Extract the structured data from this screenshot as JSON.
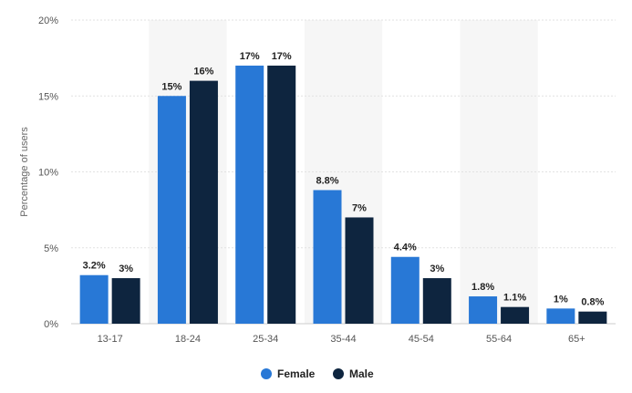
{
  "chart_data": {
    "type": "bar",
    "title": "",
    "xlabel": "",
    "ylabel": "Percentage of users",
    "ylim": [
      0,
      20
    ],
    "y_ticks": [
      0,
      5,
      10,
      15,
      20
    ],
    "y_tick_labels": [
      "0%",
      "5%",
      "10%",
      "15%",
      "20%"
    ],
    "categories": [
      "13-17",
      "18-24",
      "25-34",
      "35-44",
      "45-54",
      "55-64",
      "65+"
    ],
    "series": [
      {
        "name": "Female",
        "color": "#2878d6",
        "values": [
          3.2,
          15,
          17,
          8.8,
          4.4,
          1.8,
          1
        ],
        "labels": [
          "3.2%",
          "15%",
          "17%",
          "8.8%",
          "4.4%",
          "1.8%",
          "1%"
        ]
      },
      {
        "name": "Male",
        "color": "#0e253f",
        "values": [
          3,
          16,
          17,
          7,
          3,
          1.1,
          0.8
        ],
        "labels": [
          "3%",
          "16%",
          "17%",
          "7%",
          "3%",
          "1.1%",
          "0.8%"
        ]
      }
    ],
    "grid": true,
    "legend_position": "bottom"
  }
}
